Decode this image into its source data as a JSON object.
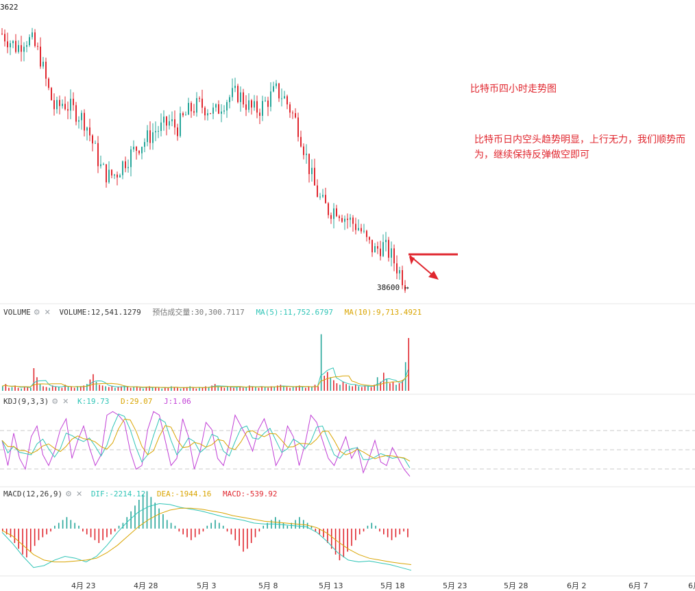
{
  "annotations": {
    "title": "比特币四小时走势图",
    "text": "比特币日内空头趋势明显，上行无力，我们顺势而为，继续保持反弹做空即可"
  },
  "colors": {
    "up": "#26a69a",
    "down": "#e0262e",
    "ma5": "#2ec4b6",
    "ma10": "#d9a400",
    "j_line": "#c13fd6",
    "arrow": "#e0262e"
  },
  "icons": [
    "gear-icon",
    "close-icon",
    "arrow-right-icon"
  ],
  "chart_data": {
    "type": "candlestick",
    "top_price_label": "3622",
    "last_price_label": "38600",
    "x_tick_labels": [
      "4月 23",
      "4月 28",
      "5月 3",
      "5月 8",
      "5月 13",
      "5月 18",
      "5月 23",
      "5月 28",
      "6月 2",
      "6月 7",
      "6月"
    ],
    "price_trend_close": [
      47300,
      47050,
      46800,
      47150,
      47000,
      46500,
      45400,
      44600,
      44900,
      44700,
      44500,
      44200,
      43400,
      42600,
      42300,
      42400,
      42800,
      43100,
      43400,
      43600,
      43900,
      44000,
      44200,
      44000,
      44400,
      44700,
      44800,
      44700,
      44500,
      44900,
      45100,
      45200,
      44900,
      44600,
      44700,
      45000,
      45300,
      45100,
      44600,
      44000,
      43000,
      42000,
      41400,
      41100,
      41200,
      40900,
      40700,
      40500,
      40000,
      39700,
      39900,
      39600,
      39100,
      38600
    ],
    "volume": {
      "name": "VOLUME",
      "value": "12,541.1279",
      "estimated_label": "预估成交量",
      "estimated_value": "30,300.7117",
      "ma5_label": "MA(5)",
      "ma5_value": "11,752.6797",
      "ma10_label": "MA(10)",
      "ma10_value": "9,713.4921",
      "bars": [
        6,
        9,
        4,
        5,
        7,
        4,
        3,
        6,
        5,
        4,
        30,
        18,
        9,
        6,
        5,
        4,
        7,
        6,
        5,
        4,
        8,
        6,
        5,
        4,
        6,
        5,
        7,
        9,
        15,
        22,
        12,
        8,
        7,
        6,
        5,
        6,
        4,
        5,
        6,
        7,
        5,
        4,
        5,
        6,
        4,
        3,
        5,
        6,
        4,
        5,
        4,
        3,
        5,
        4,
        6,
        5,
        4,
        3,
        4,
        5,
        6,
        4,
        3,
        5,
        4,
        6,
        5,
        7,
        9,
        6,
        5,
        4,
        6,
        5,
        4,
        5,
        6,
        4,
        5,
        7,
        6,
        5,
        4,
        6,
        5,
        4,
        6,
        5,
        7,
        8,
        6,
        5,
        4,
        5,
        6,
        7,
        5,
        4,
        6,
        5,
        8,
        6,
        75,
        20,
        25,
        18,
        14,
        10,
        8,
        12,
        9,
        7,
        6,
        8,
        6,
        5,
        7,
        6,
        5,
        8,
        18,
        12,
        24,
        16,
        10,
        12,
        8,
        10,
        14,
        38,
        70
      ]
    },
    "kdj": {
      "name": "KDJ(9,3,3)",
      "k_label": "K",
      "k_value": "19.73",
      "d_label": "D",
      "d_value": "29.07",
      "j_label": "J",
      "j_value": "1.06",
      "j_series": [
        55,
        20,
        65,
        30,
        15,
        60,
        75,
        35,
        20,
        40,
        70,
        85,
        30,
        55,
        75,
        45,
        20,
        35,
        90,
        95,
        90,
        80,
        40,
        15,
        20,
        70,
        95,
        90,
        55,
        20,
        30,
        85,
        60,
        15,
        40,
        80,
        70,
        30,
        20,
        50,
        90,
        75,
        60,
        40,
        70,
        85,
        60,
        20,
        35,
        75,
        60,
        20,
        50,
        90,
        80,
        55,
        30,
        20,
        40,
        60,
        30,
        45,
        10,
        30,
        55,
        25,
        20,
        45,
        30,
        15,
        5
      ]
    },
    "macd": {
      "name": "MACD(12,26,9)",
      "dif_label": "DIF",
      "dif_value": "-2214.12",
      "dea_label": "DEA",
      "dea_value": "-1944.16",
      "macd_label": "MACD",
      "macd_value": "-539.92",
      "hist": [
        -2,
        -4,
        -6,
        -10,
        -14,
        -18,
        -20,
        -16,
        -12,
        -8,
        -6,
        -4,
        -2,
        2,
        4,
        6,
        8,
        6,
        4,
        2,
        -2,
        -4,
        -6,
        -8,
        -10,
        -8,
        -6,
        -4,
        -2,
        2,
        4,
        8,
        12,
        16,
        20,
        24,
        26,
        22,
        18,
        14,
        10,
        6,
        4,
        2,
        -2,
        -4,
        -6,
        -8,
        -6,
        -4,
        -2,
        2,
        4,
        6,
        4,
        2,
        -2,
        -4,
        -8,
        -12,
        -16,
        -14,
        -10,
        -6,
        -2,
        2,
        4,
        6,
        8,
        6,
        4,
        2,
        4,
        6,
        8,
        6,
        4,
        2,
        -2,
        -4,
        -6,
        -10,
        -14,
        -18,
        -22,
        -20,
        -16,
        -12,
        -8,
        -4,
        -2,
        2,
        4,
        2,
        -2,
        -4,
        -6,
        -8,
        -6,
        -4,
        -2,
        -6
      ],
      "dif_series": [
        -200,
        -800,
        -1500,
        -2100,
        -2000,
        -1700,
        -1500,
        -1600,
        -1800,
        -1500,
        -900,
        -200,
        400,
        900,
        1200,
        1350,
        1300,
        1150,
        1050,
        950,
        800,
        650,
        550,
        450,
        300,
        250,
        250,
        200,
        150,
        100,
        -200,
        -700,
        -1300,
        -1700,
        -1800,
        -1750,
        -1850,
        -1950,
        -2100,
        -2250
      ],
      "dea_series": [
        -100,
        -400,
        -900,
        -1400,
        -1700,
        -1800,
        -1800,
        -1750,
        -1700,
        -1600,
        -1300,
        -900,
        -400,
        100,
        500,
        800,
        1000,
        1100,
        1100,
        1050,
        950,
        850,
        700,
        600,
        500,
        400,
        350,
        300,
        250,
        200,
        50,
        -250,
        -700,
        -1100,
        -1400,
        -1600,
        -1700,
        -1800,
        -1880,
        -1944
      ]
    }
  }
}
